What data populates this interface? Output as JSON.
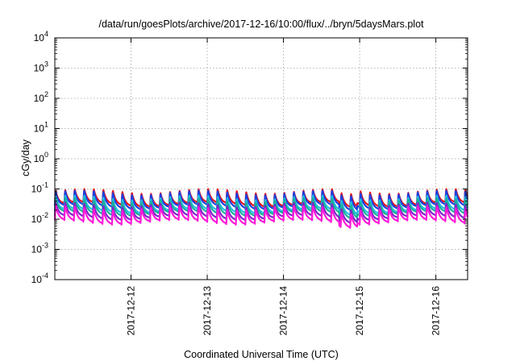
{
  "chart_data": {
    "type": "line",
    "title": "/data/run/goesPlots/archive/2017-12-16/10:00/flux/../bryn/5daysMars.plot",
    "xlabel": "Coordinated Universal Time (UTC)",
    "ylabel": "cGy/day",
    "y_scale": "log",
    "ylim": [
      0.0001,
      10000
    ],
    "y_ticks": [
      {
        "value": 0.0001,
        "base": "10",
        "exp": "-4"
      },
      {
        "value": 0.001,
        "base": "10",
        "exp": "-3"
      },
      {
        "value": 0.01,
        "base": "10",
        "exp": "-2"
      },
      {
        "value": 0.1,
        "base": "10",
        "exp": "-1"
      },
      {
        "value": 1,
        "base": "10",
        "exp": "0"
      },
      {
        "value": 10,
        "base": "10",
        "exp": "1"
      },
      {
        "value": 100,
        "base": "10",
        "exp": "2"
      },
      {
        "value": 1000,
        "base": "10",
        "exp": "3"
      },
      {
        "value": 10000,
        "base": "10",
        "exp": "4"
      }
    ],
    "xlim": [
      "2017-12-11T00:00",
      "2017-12-16T10:00"
    ],
    "x_ticks": [
      "2017-12-12",
      "2017-12-13",
      "2017-12-14",
      "2017-12-15",
      "2017-12-16"
    ],
    "grid": true,
    "legend": "none",
    "series": [
      {
        "color": "#e8161b",
        "values_approx": {
          "baseline": 0.03,
          "peak": 0.09,
          "period_hours": 3
        }
      },
      {
        "color": "#1e3fe0",
        "values_approx": {
          "baseline": 0.025,
          "peak": 0.08,
          "period_hours": 3
        }
      },
      {
        "color": "#20c0e0",
        "values_approx": {
          "baseline": 0.018,
          "peak": 0.055,
          "period_hours": 3
        }
      },
      {
        "color": "#1ab09a",
        "values_approx": {
          "baseline": 0.015,
          "peak": 0.045,
          "period_hours": 3
        }
      },
      {
        "color": "#7a28c8",
        "values_approx": {
          "baseline": 0.011,
          "peak": 0.032,
          "period_hours": 3
        }
      },
      {
        "color": "#ff1ad9",
        "values_approx": {
          "baseline": 0.008,
          "peak": 0.025,
          "period_hours": 3
        }
      }
    ]
  }
}
